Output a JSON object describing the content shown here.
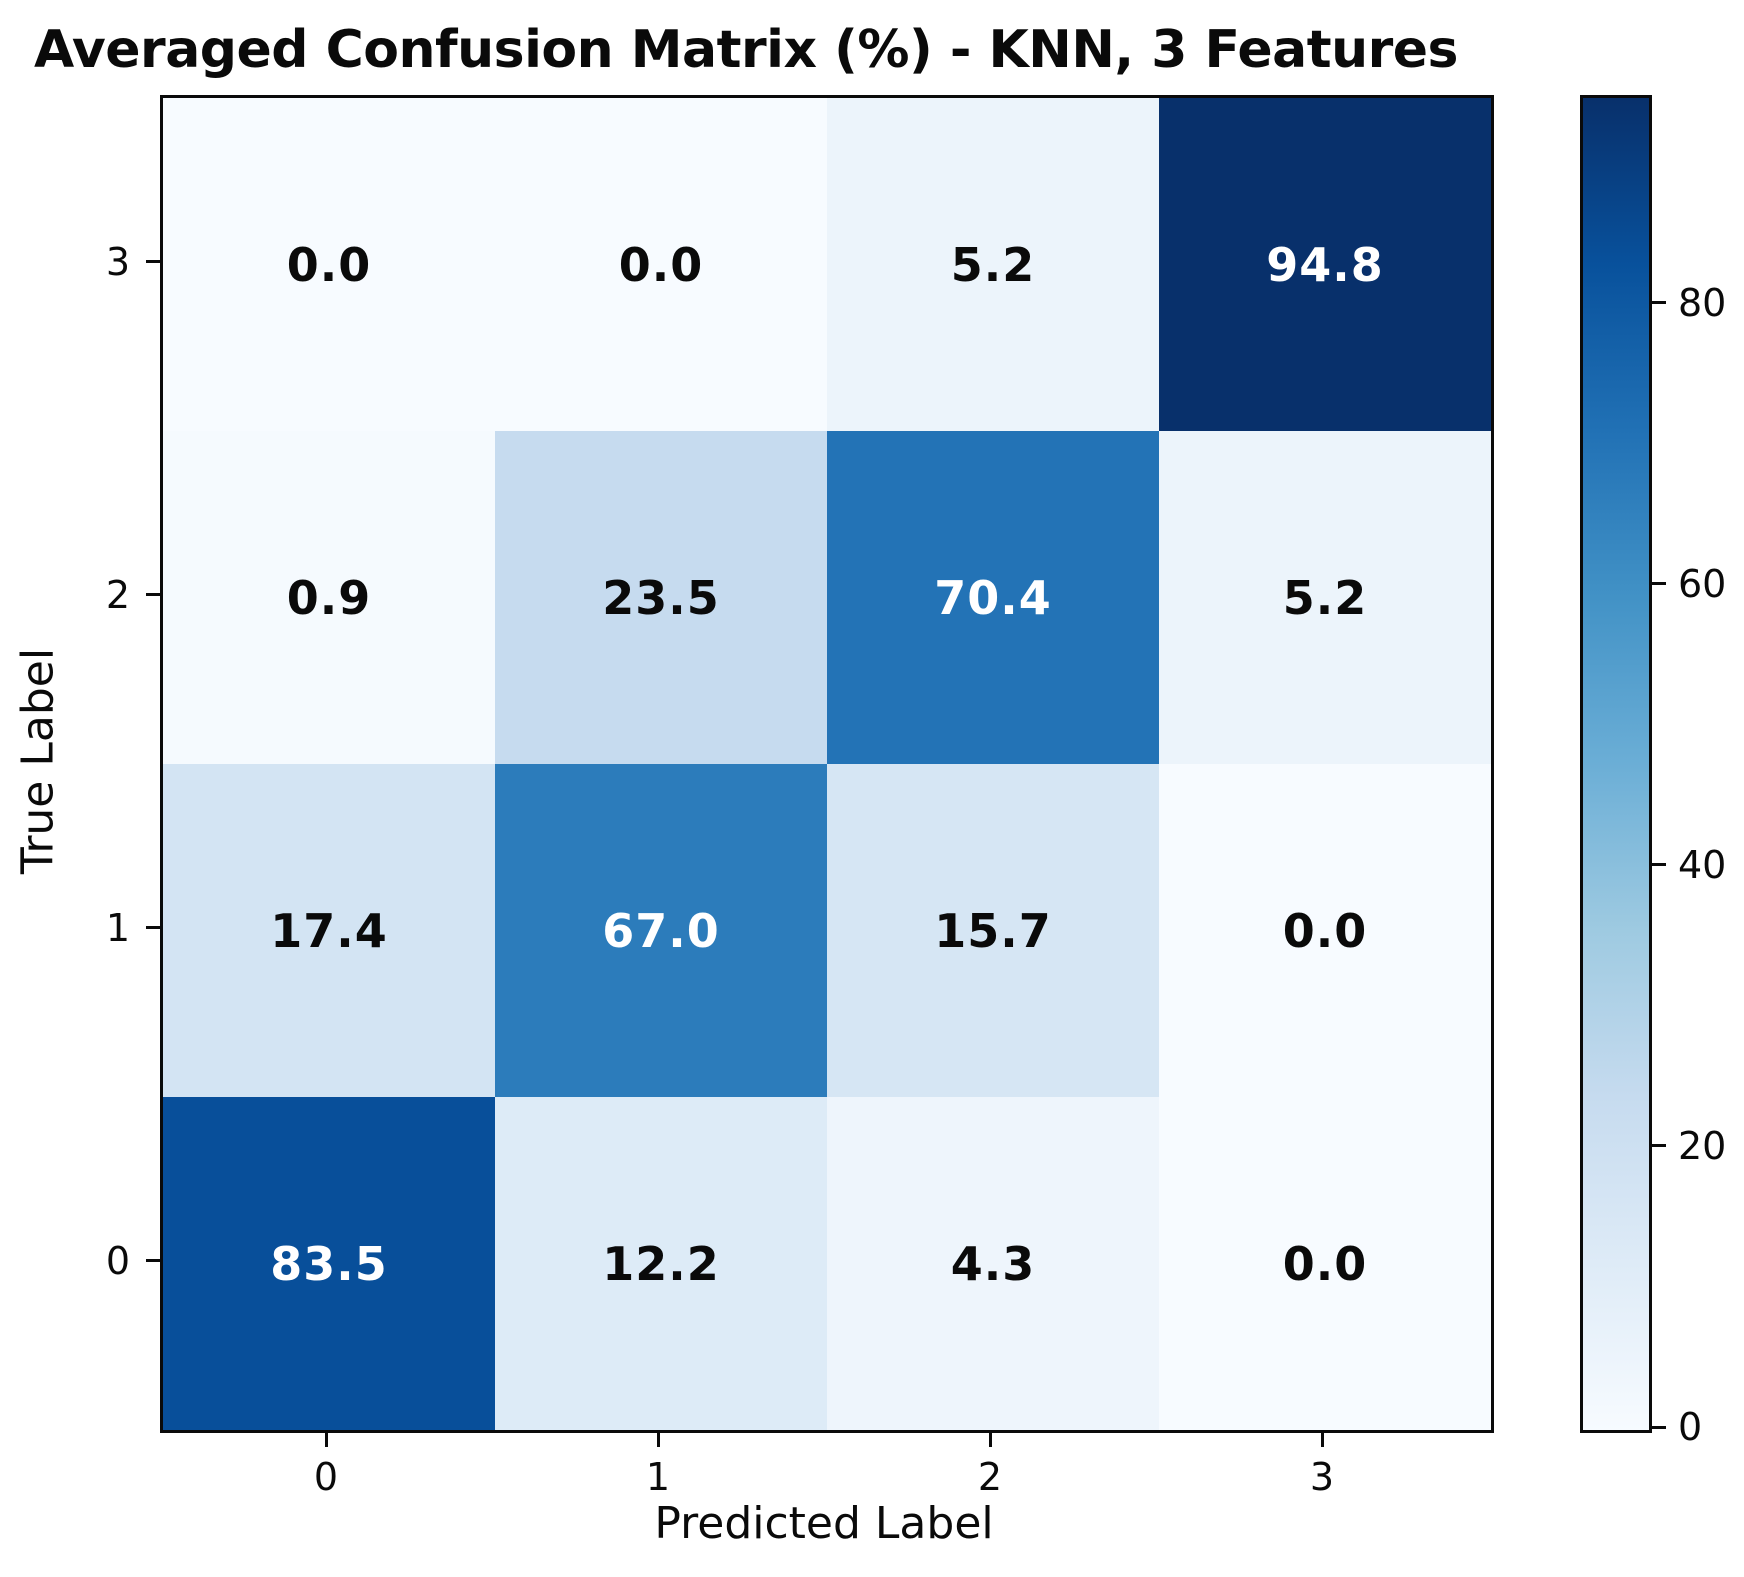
{
  "title": "Averaged Confusion Matrix (%) - KNN, 3 Features",
  "chart_data": {
    "type": "heatmap",
    "title": "Averaged Confusion Matrix (%) - KNN, 3 Features",
    "xlabel": "Predicted Label",
    "ylabel": "True Label",
    "x_tick_labels": [
      "0",
      "1",
      "2",
      "3"
    ],
    "y_tick_labels_top_to_bottom": [
      "3",
      "2",
      "1",
      "0"
    ],
    "rows_top_to_bottom": [
      {
        "true_label": "3",
        "values": [
          0.0,
          0.0,
          5.2,
          94.8
        ]
      },
      {
        "true_label": "2",
        "values": [
          0.9,
          23.5,
          70.4,
          5.2
        ]
      },
      {
        "true_label": "1",
        "values": [
          17.4,
          67.0,
          15.7,
          0.0
        ]
      },
      {
        "true_label": "0",
        "values": [
          83.5,
          12.2,
          4.3,
          0.0
        ]
      }
    ],
    "value_format_decimals": 1,
    "colormap": "Blues",
    "colormap_stops": [
      "#f7fbff",
      "#deebf7",
      "#c6dbef",
      "#9ecae1",
      "#6baed6",
      "#4292c6",
      "#2171b5",
      "#08519c",
      "#08306b"
    ],
    "vmin": 0,
    "vmax": 94.8,
    "colorbar_ticks": [
      0,
      20,
      40,
      60,
      80
    ],
    "annotation_dark_text_color": "#0a0a0a",
    "annotation_light_text_color": "#ffffff",
    "grid": false,
    "legend_position": "colorbar-right"
  }
}
